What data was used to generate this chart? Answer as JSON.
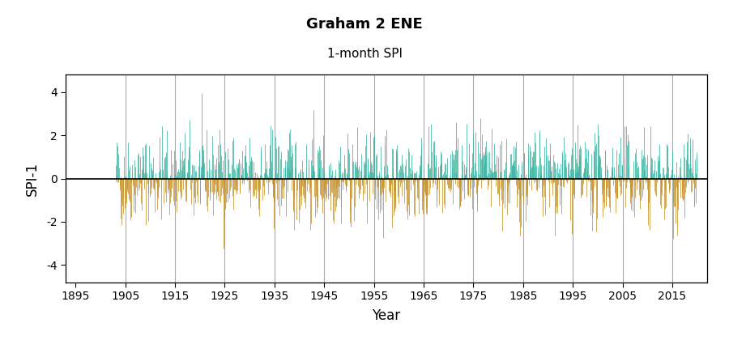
{
  "title": "Graham 2 ENE",
  "subtitle": "1-month SPI",
  "ylabel": "SPI-1",
  "xlabel": "Year",
  "xlim": [
    1893,
    2022
  ],
  "ylim": [
    -4.8,
    4.8
  ],
  "yticks": [
    -4,
    -2,
    0,
    2,
    4
  ],
  "xticks": [
    1895,
    1905,
    1915,
    1925,
    1935,
    1945,
    1955,
    1965,
    1975,
    1985,
    1995,
    2005,
    2015
  ],
  "data_start_year": 1903,
  "data_end_year": 2020,
  "color_positive": "#3CB4A0",
  "color_negative": "#C8922A",
  "grid_color": "#AAAAAA",
  "background_color": "#FFFFFF",
  "zero_line_color": "#000000",
  "seed": 42,
  "n_months": 1404,
  "ar_coeff": 0.25,
  "figsize": [
    9.0,
    4.2
  ],
  "dpi": 100,
  "title_fontsize": 13,
  "subtitle_fontsize": 11,
  "axis_label_fontsize": 12,
  "tick_fontsize": 10
}
